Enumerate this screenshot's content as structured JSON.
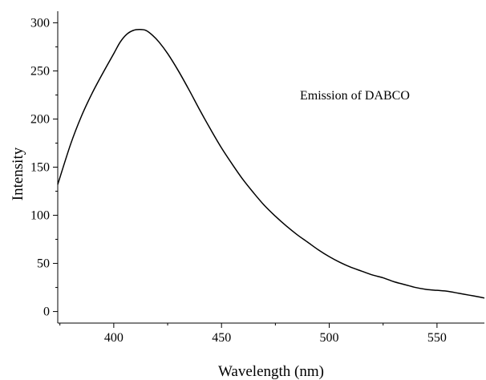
{
  "chart_data": {
    "type": "line",
    "title": "",
    "xlabel": "Wavelength (nm)",
    "ylabel": "Intensity",
    "annotation": "Emission of DABCO",
    "xlim": [
      374,
      572
    ],
    "ylim": [
      -12,
      312
    ],
    "xticks": [
      400,
      450,
      500,
      550
    ],
    "yticks": [
      0,
      50,
      100,
      150,
      200,
      250,
      300
    ],
    "grid": false,
    "colors": {
      "line": "#000000",
      "axis": "#000000"
    },
    "series": [
      {
        "x": [
          374,
          380,
          385,
          390,
          395,
          400,
          403,
          406,
          409,
          412,
          415,
          418,
          421,
          425,
          430,
          435,
          440,
          445,
          450,
          455,
          460,
          465,
          470,
          475,
          480,
          485,
          490,
          495,
          500,
          505,
          510,
          515,
          520,
          525,
          530,
          535,
          540,
          545,
          550,
          555,
          560,
          565,
          570,
          572
        ],
        "y": [
          132,
          174,
          203,
          227,
          248,
          268,
          280,
          288,
          292,
          293,
          292,
          287,
          280,
          268,
          250,
          230,
          209,
          189,
          170,
          153,
          137,
          123,
          110,
          99,
          89,
          80,
          72,
          64,
          57,
          51,
          46,
          42,
          38,
          35,
          31,
          28,
          25,
          23,
          22,
          21,
          19,
          17,
          15,
          14
        ]
      }
    ]
  }
}
